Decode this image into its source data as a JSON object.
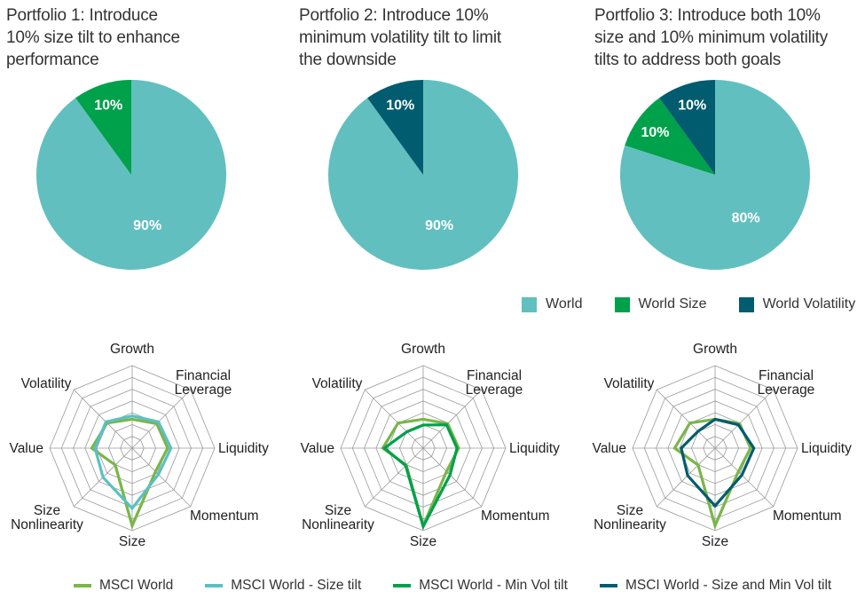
{
  "chart_data": [
    {
      "type": "pie",
      "title": "Portfolio 1: Introduce\n10% size tilt to enhance\nperformance",
      "slices": [
        {
          "label": "World",
          "value": 90,
          "display": "90%",
          "color": "#62bfbf"
        },
        {
          "label": "World Size",
          "value": 10,
          "display": "10%",
          "color": "#00a14b"
        }
      ]
    },
    {
      "type": "pie",
      "title": "Portfolio 2: Introduce 10%\nminimum volatility tilt to limit\nthe downside",
      "slices": [
        {
          "label": "World",
          "value": 90,
          "display": "90%",
          "color": "#62bfbf"
        },
        {
          "label": "World Volatility",
          "value": 10,
          "display": "10%",
          "color": "#005c6e"
        }
      ]
    },
    {
      "type": "pie",
      "title": "Portfolio 3: Introduce both 10%\nsize and 10% minimum volatility\ntilts to address both goals",
      "slices": [
        {
          "label": "World",
          "value": 80,
          "display": "80%",
          "color": "#62bfbf"
        },
        {
          "label": "World Size",
          "value": 10,
          "display": "10%",
          "color": "#00a14b"
        },
        {
          "label": "World Volatility",
          "value": 10,
          "display": "10%",
          "color": "#005c6e"
        }
      ]
    },
    {
      "type": "radar",
      "axes": [
        "Growth",
        "Financial Leverage",
        "Liquidity",
        "Momentum",
        "Size",
        "Size Nonlinearity",
        "Value",
        "Volatility"
      ],
      "range": [
        0,
        1
      ],
      "rings": 7,
      "series": [
        {
          "name": "MSCI World",
          "color": "#7ab648",
          "values": [
            0.35,
            0.42,
            0.43,
            0.4,
            0.94,
            0.29,
            0.49,
            0.43
          ]
        },
        {
          "name": "MSCI World - Size tilt",
          "color": "#5bc0c4",
          "values": [
            0.39,
            0.45,
            0.47,
            0.45,
            0.73,
            0.5,
            0.45,
            0.45
          ]
        }
      ]
    },
    {
      "type": "radar",
      "axes": [
        "Growth",
        "Financial Leverage",
        "Liquidity",
        "Momentum",
        "Size",
        "Size Nonlinearity",
        "Value",
        "Volatility"
      ],
      "range": [
        0,
        1
      ],
      "rings": 7,
      "series": [
        {
          "name": "MSCI World",
          "color": "#7ab648",
          "values": [
            0.35,
            0.42,
            0.43,
            0.4,
            0.94,
            0.29,
            0.49,
            0.43
          ]
        },
        {
          "name": "MSCI World - Min Vol tilt",
          "color": "#00a14b",
          "values": [
            0.28,
            0.4,
            0.41,
            0.46,
            0.95,
            0.3,
            0.47,
            0.28
          ]
        }
      ]
    },
    {
      "type": "radar",
      "axes": [
        "Growth",
        "Financial Leverage",
        "Liquidity",
        "Momentum",
        "Size",
        "Size Nonlinearity",
        "Value",
        "Volatility"
      ],
      "range": [
        0,
        1
      ],
      "rings": 7,
      "series": [
        {
          "name": "MSCI World",
          "color": "#7ab648",
          "values": [
            0.35,
            0.42,
            0.43,
            0.4,
            0.94,
            0.29,
            0.49,
            0.43
          ]
        },
        {
          "name": "MSCI World - Size and Min Vol tilt",
          "color": "#005c6e",
          "values": [
            0.35,
            0.4,
            0.47,
            0.46,
            0.7,
            0.47,
            0.41,
            0.29
          ]
        }
      ]
    }
  ],
  "pie_legend": [
    {
      "label": "World",
      "color": "#62bfbf"
    },
    {
      "label": "World Size",
      "color": "#00a14b"
    },
    {
      "label": "World Volatility",
      "color": "#005c6e"
    }
  ],
  "line_legend": [
    {
      "label": "MSCI World",
      "color": "#7ab648"
    },
    {
      "label": "MSCI World - Size tilt",
      "color": "#5bc0c4"
    },
    {
      "label": "MSCI World - Min Vol tilt",
      "color": "#00a14b"
    },
    {
      "label": "MSCI World - Size and Min Vol tilt",
      "color": "#005c6e"
    }
  ],
  "axis_label_lines": {
    "Growth": [
      "Growth"
    ],
    "Financial Leverage": [
      "Financial",
      "Leverage"
    ],
    "Liquidity": [
      "Liquidity"
    ],
    "Momentum": [
      "Momentum"
    ],
    "Size": [
      "Size"
    ],
    "Size Nonlinearity": [
      "Size",
      "Nonlinearity"
    ],
    "Value": [
      "Value"
    ],
    "Volatility": [
      "Volatility"
    ]
  }
}
